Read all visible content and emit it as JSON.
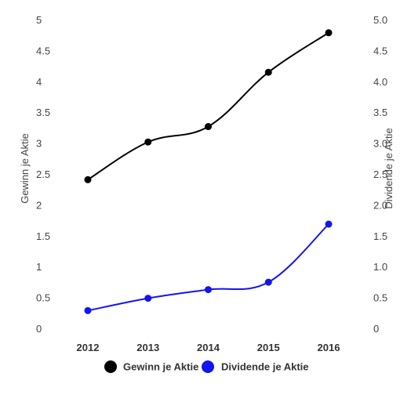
{
  "chart_data": {
    "type": "line",
    "x": [
      "2012",
      "2013",
      "2014",
      "2015",
      "2016"
    ],
    "series": [
      {
        "name": "Gewinn je Aktie",
        "values": [
          2.42,
          3.03,
          3.28,
          4.16,
          4.8
        ],
        "color": "#000000",
        "axis": "left"
      },
      {
        "name": "Dividende je Aktie",
        "values": [
          0.3,
          0.5,
          0.64,
          0.76,
          1.7
        ],
        "color": "#1414f0",
        "axis": "right"
      }
    ],
    "y_left": {
      "label": "Gewinn je Aktie",
      "ticks": [
        "0",
        "0.5",
        "1",
        "1.5",
        "2",
        "2.5",
        "3",
        "3.5",
        "4",
        "4.5",
        "5"
      ],
      "ylim": [
        0,
        5
      ]
    },
    "y_right": {
      "label": "Dividende je Aktie",
      "ticks": [
        "0",
        "0.5",
        "1.0",
        "1.5",
        "2.0",
        "2.5",
        "3.0",
        "3.5",
        "4.0",
        "4.5",
        "5.0"
      ],
      "ylim": [
        0,
        5
      ]
    },
    "grid": false,
    "legend": "bottom-center"
  }
}
